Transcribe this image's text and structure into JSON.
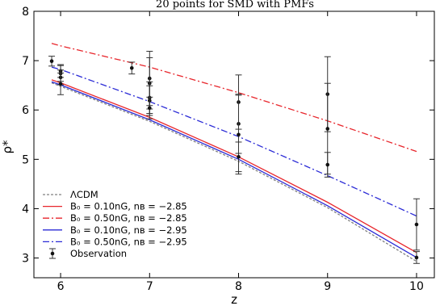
{
  "chart_data": {
    "type": "line",
    "title": "20 points for SMD with PMFs",
    "xlabel": "z",
    "ylabel": "ρ*",
    "xlim": [
      5.7,
      10.2
    ],
    "ylim": [
      2.6,
      8.0
    ],
    "xticks": [
      6,
      7,
      8,
      9,
      10
    ],
    "yticks": [
      3,
      4,
      5,
      6,
      7,
      8
    ],
    "legend_position": "lower-left",
    "series": [
      {
        "name": "ΛCDM",
        "color": "#808080",
        "dash": "3,2",
        "x": [
          5.9,
          6.0,
          7.0,
          8.0,
          9.0,
          10.0
        ],
        "y": [
          6.55,
          6.48,
          5.77,
          4.96,
          4.02,
          2.93
        ]
      },
      {
        "name": "B₀ = 0.10nG, nʙ = −2.85",
        "color": "#e8262c",
        "dash": "",
        "x": [
          5.9,
          6.0,
          7.0,
          8.0,
          9.0,
          10.0
        ],
        "y": [
          6.61,
          6.55,
          5.85,
          5.05,
          4.13,
          3.11
        ]
      },
      {
        "name": "B₀ = 0.50nG, nʙ = −2.85",
        "color": "#e8262c",
        "dash": "8,3,2,3",
        "x": [
          5.9,
          6.0,
          7.0,
          8.0,
          9.0,
          10.0
        ],
        "y": [
          7.35,
          7.3,
          6.87,
          6.35,
          5.78,
          5.16
        ]
      },
      {
        "name": "B₀ = 0.10nG, nʙ = −2.95",
        "color": "#2b2bd6",
        "dash": "",
        "x": [
          5.9,
          6.0,
          7.0,
          8.0,
          9.0,
          10.0
        ],
        "y": [
          6.57,
          6.51,
          5.8,
          5.0,
          4.06,
          3.01
        ]
      },
      {
        "name": "B₀ = 0.50nG, nʙ = −2.95",
        "color": "#2b2bd6",
        "dash": "8,3,2,3",
        "x": [
          5.9,
          6.0,
          7.0,
          8.0,
          9.0,
          10.0
        ],
        "y": [
          6.87,
          6.82,
          6.17,
          5.46,
          4.67,
          3.85
        ]
      }
    ],
    "observation": {
      "name": "Observation",
      "points": [
        {
          "x": 5.9,
          "y": 6.99,
          "err": 0.1
        },
        {
          "x": 6.0,
          "y": 6.79,
          "err": 0.13
        },
        {
          "x": 6.0,
          "y": 6.74,
          "err": 0.16
        },
        {
          "x": 6.0,
          "y": 6.66,
          "err": 0.15
        },
        {
          "x": 6.0,
          "y": 6.53,
          "err": 0.22
        },
        {
          "x": 7.0,
          "y": 6.64,
          "err": 0.55
        },
        {
          "x": 7.0,
          "y": 6.54,
          "err": 0.52
        },
        {
          "x": 7.0,
          "y": 6.25,
          "err": 0.32
        },
        {
          "x": 7.0,
          "y": 6.19,
          "err": 0.3
        },
        {
          "x": 7.0,
          "y": 6.04,
          "err": 0.22
        },
        {
          "x": 6.8,
          "y": 6.85,
          "err": 0.12
        },
        {
          "x": 8.0,
          "y": 6.16,
          "err": 0.55
        },
        {
          "x": 8.0,
          "y": 5.72,
          "err": 0.6
        },
        {
          "x": 8.0,
          "y": 5.5,
          "err": 0.8
        },
        {
          "x": 8.0,
          "y": 5.05,
          "err": 0.3
        },
        {
          "x": 9.0,
          "y": 6.32,
          "err": 0.76
        },
        {
          "x": 9.0,
          "y": 5.62,
          "err": 0.92
        },
        {
          "x": 9.0,
          "y": 4.89,
          "err": 0.25
        },
        {
          "x": 10.0,
          "y": 3.68,
          "err": 0.52
        },
        {
          "x": 10.0,
          "y": 3.01,
          "err": 0.12
        }
      ]
    }
  }
}
